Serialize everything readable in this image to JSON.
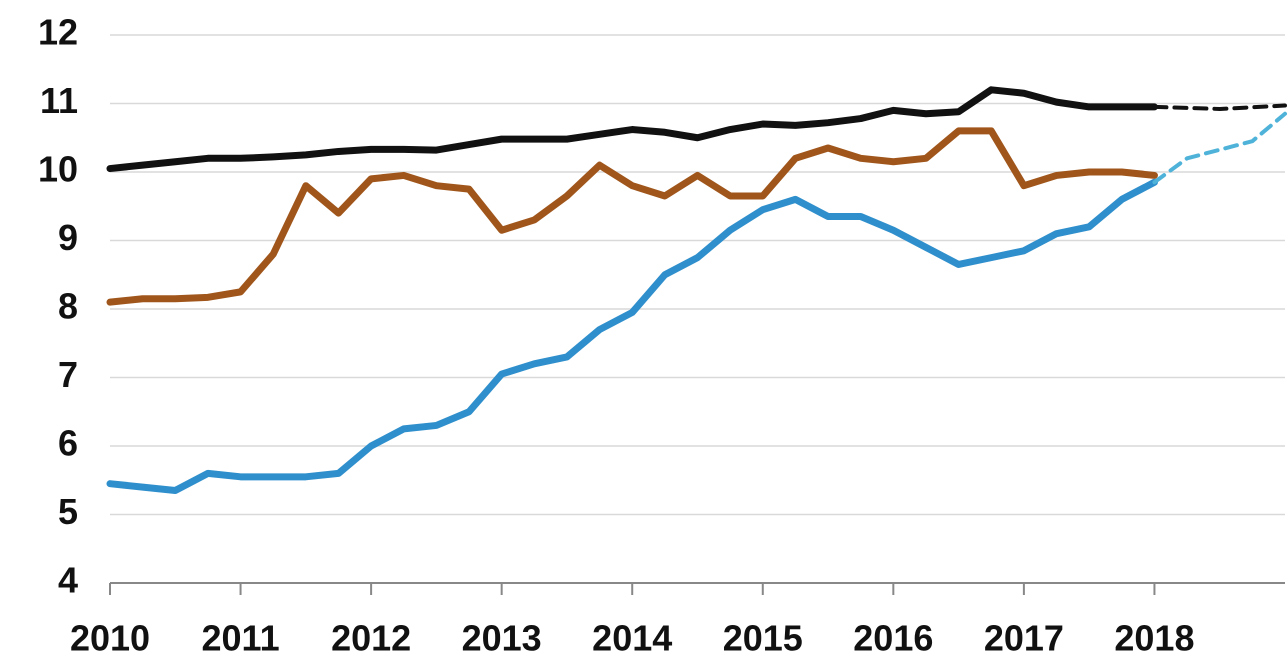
{
  "chart_data": {
    "type": "line",
    "xlim": [
      2010,
      2019
    ],
    "xticks": [
      2010,
      2011,
      2012,
      2013,
      2014,
      2015,
      2016,
      2017,
      2018
    ],
    "ylim": [
      4,
      12
    ],
    "yticks": [
      4,
      5,
      6,
      7,
      8,
      9,
      10,
      11,
      12
    ],
    "grid": true,
    "series": [
      {
        "color": "#111111",
        "dashed": false,
        "x": [
          2010,
          2010.25,
          2010.5,
          2010.75,
          2011,
          2011.25,
          2011.5,
          2011.75,
          2012,
          2012.25,
          2012.5,
          2012.75,
          2013,
          2013.25,
          2013.5,
          2013.75,
          2014,
          2014.25,
          2014.5,
          2014.75,
          2015,
          2015.25,
          2015.5,
          2015.75,
          2016,
          2016.25,
          2016.5,
          2016.75,
          2017,
          2017.25,
          2017.5,
          2017.75,
          2018
        ],
        "values": [
          10.05,
          10.1,
          10.15,
          10.2,
          10.2,
          10.22,
          10.25,
          10.3,
          10.33,
          10.33,
          10.32,
          10.4,
          10.48,
          10.48,
          10.48,
          10.55,
          10.62,
          10.58,
          10.5,
          10.62,
          10.7,
          10.68,
          10.72,
          10.78,
          10.9,
          10.85,
          10.88,
          11.2,
          11.15,
          11.02,
          10.95,
          10.95,
          10.95
        ]
      },
      {
        "color": "#111111",
        "dashed": true,
        "x": [
          2018,
          2018.5,
          2019
        ],
        "values": [
          10.95,
          10.92,
          10.97
        ]
      },
      {
        "color": "#a0561b",
        "dashed": false,
        "x": [
          2010,
          2010.25,
          2010.5,
          2010.75,
          2011,
          2011.25,
          2011.5,
          2011.75,
          2012,
          2012.25,
          2012.5,
          2012.75,
          2013,
          2013.25,
          2013.5,
          2013.75,
          2014,
          2014.25,
          2014.5,
          2014.75,
          2015,
          2015.25,
          2015.5,
          2015.75,
          2016,
          2016.25,
          2016.5,
          2016.75,
          2017,
          2017.25,
          2017.5,
          2017.75,
          2018
        ],
        "values": [
          8.1,
          8.15,
          8.15,
          8.17,
          8.25,
          8.8,
          9.8,
          9.4,
          9.9,
          9.95,
          9.8,
          9.75,
          9.15,
          9.3,
          9.65,
          10.1,
          9.8,
          9.65,
          9.95,
          9.65,
          9.65,
          10.2,
          10.35,
          10.2,
          10.15,
          10.2,
          10.6,
          10.6,
          9.8,
          9.95,
          10.0,
          10.0,
          9.95
        ]
      },
      {
        "color": "#2f8fcc",
        "dashed": false,
        "x": [
          2010,
          2010.25,
          2010.5,
          2010.75,
          2011,
          2011.25,
          2011.5,
          2011.75,
          2012,
          2012.25,
          2012.5,
          2012.75,
          2013,
          2013.25,
          2013.5,
          2013.75,
          2014,
          2014.25,
          2014.5,
          2014.75,
          2015,
          2015.25,
          2015.5,
          2015.75,
          2016,
          2016.25,
          2016.5,
          2016.75,
          2017,
          2017.25,
          2017.5,
          2017.75,
          2018
        ],
        "values": [
          5.45,
          5.4,
          5.35,
          5.6,
          5.55,
          5.55,
          5.55,
          5.6,
          6.0,
          6.25,
          6.3,
          6.5,
          7.05,
          7.2,
          7.3,
          7.7,
          7.95,
          8.5,
          8.75,
          9.15,
          9.45,
          9.6,
          9.35,
          9.35,
          9.15,
          8.9,
          8.65,
          8.75,
          8.85,
          9.1,
          9.2,
          9.6,
          9.85
        ]
      },
      {
        "color": "#4fb3d9",
        "dashed": true,
        "x": [
          2018,
          2018.25,
          2018.75,
          2019
        ],
        "values": [
          9.85,
          10.2,
          10.45,
          10.85
        ]
      }
    ]
  }
}
